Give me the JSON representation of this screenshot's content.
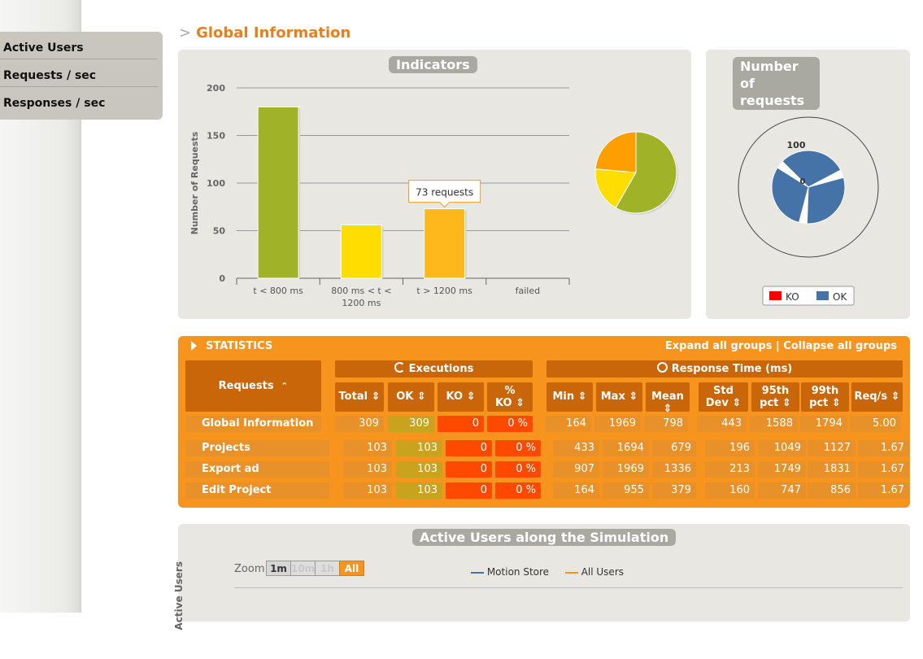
{
  "menu": {
    "items": [
      "Active Users",
      "Requests / sec",
      "Responses / sec"
    ]
  },
  "page": {
    "title_prefix": ">",
    "title": "Global Information"
  },
  "indicators": {
    "title": "Indicators",
    "tooltip": "73 requests"
  },
  "chart_data": [
    {
      "type": "bar",
      "title": "Indicators",
      "ylabel": "Number of Requests",
      "categories": [
        "t < 800 ms",
        "800 ms < t < 1200 ms",
        "t > 1200 ms",
        "failed"
      ],
      "category_lines": [
        [
          "t < 800 ms"
        ],
        [
          "800 ms < t <",
          "1200 ms"
        ],
        [
          "t > 1200 ms"
        ],
        [
          "failed"
        ]
      ],
      "values": [
        180,
        56,
        73,
        0
      ],
      "colors": [
        "#a0b228",
        "#ffdd00",
        "#ffb81c",
        "#ff0000"
      ],
      "yticks": [
        "0",
        "50",
        "100",
        "150",
        "200"
      ],
      "ylim": [
        0,
        200
      ]
    },
    {
      "type": "pie",
      "values": [
        180,
        56,
        73,
        0
      ],
      "colors": [
        "#a0b228",
        "#ffdd00",
        "#ff9e00",
        "#ff0000"
      ]
    },
    {
      "type": "pie",
      "title": "Number of requests",
      "legend": [
        "KO",
        "OK"
      ],
      "legend_colors": [
        "#ff0000",
        "#4572a7"
      ],
      "radial_labels": [
        "100",
        "0"
      ],
      "values": [
        103,
        103,
        103
      ],
      "max": 103
    }
  ],
  "statistics": {
    "title": "STATISTICS",
    "expand": "Expand all groups",
    "separator": "|",
    "collapse": "Collapse all groups",
    "requests_header": "Requests",
    "sort_up": "⌃",
    "executions": "Executions",
    "response_time": "Response Time (ms)",
    "columns": [
      {
        "line1": "Total",
        "line2": ""
      },
      {
        "line1": "OK",
        "line2": ""
      },
      {
        "line1": "KO",
        "line2": ""
      },
      {
        "line1": "%",
        "line2": "KO"
      },
      {
        "line1": "Min",
        "line2": ""
      },
      {
        "line1": "Max",
        "line2": ""
      },
      {
        "line1": "Mean",
        "line2": ""
      },
      {
        "line1": "Std",
        "line2": "Dev"
      },
      {
        "line1": "95th",
        "line2": "pct"
      },
      {
        "line1": "99th",
        "line2": "pct"
      },
      {
        "line1": "Req/s",
        "line2": ""
      }
    ],
    "global": {
      "name": "Global Information",
      "values": [
        "309",
        "309",
        "0",
        "0 %",
        "164",
        "1969",
        "798",
        "443",
        "1588",
        "1794",
        "5.00"
      ]
    },
    "rows": [
      {
        "name": "Projects",
        "values": [
          "103",
          "103",
          "0",
          "0 %",
          "433",
          "1694",
          "679",
          "196",
          "1049",
          "1127",
          "1.67"
        ]
      },
      {
        "name": "Export ad",
        "values": [
          "103",
          "103",
          "0",
          "0 %",
          "907",
          "1969",
          "1336",
          "213",
          "1749",
          "1831",
          "1.67"
        ]
      },
      {
        "name": "Edit Project",
        "values": [
          "103",
          "103",
          "0",
          "0 %",
          "164",
          "955",
          "379",
          "160",
          "747",
          "856",
          "1.67"
        ]
      }
    ]
  },
  "active_users": {
    "title": "Active Users along the Simulation",
    "zoom_label": "Zoom",
    "zoom": [
      "1m",
      "10m",
      "1h",
      "All"
    ],
    "legend": [
      "Motion Store",
      "All Users"
    ],
    "legend_colors": [
      "#4572a7",
      "#f7941d"
    ],
    "axis_label": "Active Users"
  }
}
